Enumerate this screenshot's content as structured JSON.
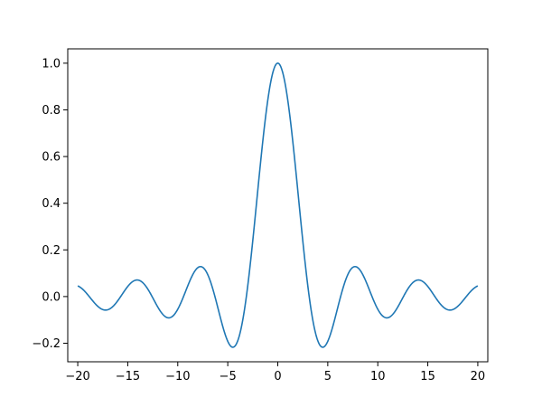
{
  "chart_data": {
    "type": "line",
    "title": "",
    "xlabel": "",
    "ylabel": "",
    "xlim": [
      -21,
      21
    ],
    "ylim": [
      -0.2795,
      1.0615
    ],
    "xticks": [
      -20,
      -15,
      -10,
      -5,
      0,
      5,
      10,
      15,
      20
    ],
    "xtick_labels": [
      "−20",
      "−15",
      "−10",
      "−5",
      "0",
      "5",
      "10",
      "15",
      "20"
    ],
    "yticks": [
      -0.2,
      0.0,
      0.2,
      0.4,
      0.6,
      0.8,
      1.0
    ],
    "ytick_labels": [
      "−0.2",
      "0.0",
      "0.2",
      "0.4",
      "0.6",
      "0.8",
      "1.0"
    ],
    "grid": false,
    "legend": "none",
    "series": [
      {
        "color": "#1f77b4",
        "x_range": [
          -20,
          20
        ],
        "function": "sin(x)/x",
        "x": [
          -20,
          -17.2,
          -14.2,
          -11,
          -7.7,
          -4.5,
          0,
          4.5,
          7.7,
          11,
          14.2,
          17.2,
          20
        ],
        "y": [
          0.046,
          -0.058,
          0.071,
          -0.091,
          0.128,
          -0.217,
          1.0,
          -0.217,
          0.128,
          -0.091,
          0.071,
          -0.058,
          0.046
        ]
      }
    ]
  }
}
